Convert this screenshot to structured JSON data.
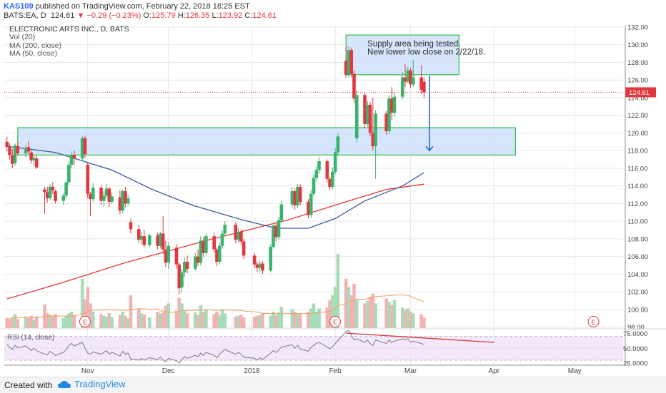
{
  "header": {
    "author": "KAS109",
    "published": "published on TradingView.com, February 22, 2018 18:25 EST",
    "ticker": "BATS:EA, D",
    "last": "124.61",
    "change": "−0.29 (−0.23%)",
    "o_label": "O:",
    "o": "125.79",
    "h_label": "H:",
    "h": "126.35",
    "l_label": "L:",
    "l": "123.92",
    "c_label": "C:",
    "c": "124.61"
  },
  "legend": [
    "ELECTRONIC ARTS INC., D, BATS",
    "Vol (20)",
    "MA (200, close)",
    "MA (50, close)"
  ],
  "footer": {
    "created_with": "Created with",
    "brand": "TradingView"
  },
  "colors": {
    "up": "#3ab36c",
    "down": "#e0383e",
    "ma200": "#e53935",
    "ma50": "#3b5b9e",
    "zone_fill": "#cfe0fa",
    "zone_border": "#2fbf4a",
    "rsi_fill": "#f3e8fa",
    "rsi_line": "#7a7a7a",
    "arrow": "#1f5fc9",
    "grid": "#e4e7ec",
    "last_price_bg": "#e0383e"
  },
  "chart_data": [
    {
      "type": "candlestick",
      "title": "ELECTRONIC ARTS INC., D, BATS",
      "x_labels": [
        "Nov",
        "Dec",
        "2018",
        "Feb",
        "Mar",
        "Apr",
        "May"
      ],
      "x_label_dates": [
        "2017-11-01",
        "2017-12-01",
        "2018-01-01",
        "2018-02-01",
        "2018-03-01",
        "2018-04-01",
        "2018-05-01"
      ],
      "y_ticks": [
        98,
        100,
        102,
        104,
        106,
        108,
        110,
        112,
        114,
        116,
        118,
        120,
        122,
        124,
        126,
        128,
        130,
        132
      ],
      "y_tick_labels": [
        "98.00",
        "100.00",
        "102.00",
        "104.00",
        "106.00",
        "108.00",
        "110.00",
        "112.00",
        "114.00",
        "116.00",
        "118.00",
        "120.00",
        "122.00",
        "124.00",
        "126.00",
        "128.00",
        "130.00",
        "132.00"
      ],
      "ylim": [
        97.5,
        133
      ],
      "last_price": 124.61,
      "last_price_label": "124.61",
      "grid": true,
      "ohlc": [
        [
          "2017-10-02",
          119.0,
          119.6,
          117.9,
          118.4
        ],
        [
          "2017-10-03",
          118.4,
          118.8,
          117.0,
          117.5
        ],
        [
          "2017-10-04",
          117.5,
          118.2,
          116.0,
          116.5
        ],
        [
          "2017-10-05",
          116.6,
          118.8,
          116.3,
          118.6
        ],
        [
          "2017-10-06",
          118.5,
          119.0,
          117.4,
          117.7
        ],
        [
          "2017-10-09",
          117.7,
          118.6,
          117.2,
          118.3
        ],
        [
          "2017-10-10",
          118.4,
          119.1,
          117.6,
          117.9
        ],
        [
          "2017-10-11",
          117.8,
          118.0,
          116.5,
          116.9
        ],
        [
          "2017-10-12",
          116.9,
          117.6,
          116.3,
          117.2
        ],
        [
          "2017-10-13",
          117.1,
          117.5,
          115.9,
          116.1
        ],
        [
          "2017-10-16",
          113.6,
          113.9,
          110.8,
          113.3
        ],
        [
          "2017-10-17",
          113.3,
          113.9,
          112.1,
          112.6
        ],
        [
          "2017-10-18",
          112.6,
          114.2,
          112.4,
          113.9
        ],
        [
          "2017-10-19",
          113.9,
          114.4,
          113.1,
          113.5
        ],
        [
          "2017-10-20",
          113.4,
          113.6,
          112.0,
          112.3
        ],
        [
          "2017-10-23",
          112.3,
          113.2,
          111.8,
          112.9
        ],
        [
          "2017-10-24",
          112.9,
          114.6,
          112.6,
          114.4
        ],
        [
          "2017-10-25",
          114.4,
          116.8,
          114.1,
          116.4
        ],
        [
          "2017-10-26",
          116.4,
          117.9,
          116.0,
          117.5
        ],
        [
          "2017-10-27",
          117.5,
          118.0,
          116.4,
          117.1
        ],
        [
          "2017-10-30",
          117.1,
          119.6,
          116.8,
          119.4
        ],
        [
          "2017-10-31",
          119.4,
          119.7,
          117.2,
          117.6
        ],
        [
          "2017-11-01",
          116.4,
          116.6,
          112.6,
          113.1
        ],
        [
          "2017-11-02",
          113.1,
          113.3,
          110.6,
          112.5
        ],
        [
          "2017-11-03",
          112.5,
          114.3,
          112.2,
          113.8
        ],
        [
          "2017-11-06",
          113.8,
          114.1,
          111.8,
          112.3
        ],
        [
          "2017-11-07",
          112.3,
          113.4,
          111.6,
          112.9
        ],
        [
          "2017-11-08",
          112.9,
          114.2,
          112.6,
          113.7
        ],
        [
          "2017-11-09",
          113.7,
          113.9,
          111.6,
          112.2
        ],
        [
          "2017-11-10",
          112.2,
          113.2,
          111.9,
          112.8
        ],
        [
          "2017-11-13",
          112.7,
          113.5,
          110.8,
          111.2
        ],
        [
          "2017-11-14",
          111.2,
          113.6,
          110.9,
          113.4
        ],
        [
          "2017-11-15",
          113.4,
          113.9,
          111.6,
          112.0
        ],
        [
          "2017-11-16",
          112.0,
          113.0,
          111.7,
          112.6
        ],
        [
          "2017-11-17",
          109.9,
          110.3,
          108.6,
          109.1
        ],
        [
          "2017-11-20",
          109.1,
          109.6,
          107.5,
          107.9
        ],
        [
          "2017-11-21",
          107.9,
          108.8,
          107.4,
          108.3
        ],
        [
          "2017-11-22",
          108.3,
          109.0,
          107.0,
          107.3
        ],
        [
          "2017-11-24",
          107.3,
          108.6,
          107.1,
          108.4
        ],
        [
          "2017-11-27",
          108.4,
          108.7,
          106.8,
          107.2
        ],
        [
          "2017-11-28",
          107.2,
          108.8,
          106.9,
          108.6
        ],
        [
          "2017-11-29",
          108.6,
          110.6,
          106.3,
          106.8
        ],
        [
          "2017-11-30",
          106.8,
          107.8,
          104.8,
          105.3
        ],
        [
          "2017-12-01",
          105.3,
          107.6,
          104.6,
          107.2
        ],
        [
          "2017-12-04",
          107.0,
          107.4,
          104.6,
          105.1
        ],
        [
          "2017-12-05",
          105.1,
          105.3,
          101.7,
          102.4
        ],
        [
          "2017-12-06",
          102.5,
          104.6,
          101.9,
          104.2
        ],
        [
          "2017-12-07",
          104.2,
          105.9,
          103.7,
          105.4
        ],
        [
          "2017-12-08",
          105.4,
          106.1,
          104.1,
          104.6
        ],
        [
          "2017-12-11",
          104.6,
          106.4,
          104.4,
          106.0
        ],
        [
          "2017-12-12",
          106.0,
          106.8,
          104.9,
          105.3
        ],
        [
          "2017-12-13",
          105.3,
          108.3,
          105.0,
          107.8
        ],
        [
          "2017-12-14",
          107.8,
          108.2,
          106.0,
          106.4
        ],
        [
          "2017-12-15",
          106.4,
          108.6,
          106.1,
          108.3
        ],
        [
          "2017-12-18",
          108.3,
          108.7,
          106.4,
          106.8
        ],
        [
          "2017-12-19",
          106.8,
          107.0,
          104.9,
          105.4
        ],
        [
          "2017-12-20",
          105.4,
          107.6,
          105.1,
          107.2
        ],
        [
          "2017-12-21",
          107.2,
          109.0,
          106.9,
          108.6
        ],
        [
          "2017-12-22",
          108.6,
          110.0,
          108.3,
          109.6
        ],
        [
          "2017-12-26",
          109.6,
          109.9,
          107.5,
          107.9
        ],
        [
          "2017-12-27",
          107.9,
          109.2,
          107.6,
          108.8
        ],
        [
          "2017-12-28",
          108.8,
          109.1,
          107.3,
          107.7
        ],
        [
          "2017-12-29",
          107.7,
          108.0,
          105.7,
          106.1
        ],
        [
          "2018-01-02",
          106.1,
          106.4,
          104.7,
          105.1
        ],
        [
          "2018-01-03",
          105.1,
          105.4,
          104.2,
          104.7
        ],
        [
          "2018-01-04",
          104.7,
          105.6,
          104.2,
          105.2
        ],
        [
          "2018-01-05",
          105.2,
          105.5,
          104.0,
          104.4
        ],
        [
          "2018-01-08",
          104.4,
          107.4,
          104.2,
          107.1
        ],
        [
          "2018-01-09",
          107.1,
          109.8,
          106.9,
          109.5
        ],
        [
          "2018-01-10",
          109.5,
          109.8,
          107.7,
          108.2
        ],
        [
          "2018-01-11",
          108.2,
          110.5,
          107.9,
          110.1
        ],
        [
          "2018-01-12",
          110.1,
          112.3,
          109.8,
          111.9
        ],
        [
          "2018-01-16",
          111.9,
          113.9,
          111.5,
          113.4
        ],
        [
          "2018-01-17",
          113.4,
          113.7,
          111.3,
          111.8
        ],
        [
          "2018-01-18",
          111.8,
          114.2,
          111.5,
          113.9
        ],
        [
          "2018-01-19",
          113.9,
          114.2,
          111.8,
          112.2
        ],
        [
          "2018-01-22",
          112.2,
          112.5,
          110.3,
          110.7
        ],
        [
          "2018-01-23",
          110.7,
          113.5,
          110.4,
          113.1
        ],
        [
          "2018-01-24",
          113.1,
          115.3,
          112.8,
          114.9
        ],
        [
          "2018-01-25",
          114.9,
          116.3,
          114.5,
          115.8
        ],
        [
          "2018-01-26",
          115.8,
          117.3,
          115.4,
          116.8
        ],
        [
          "2018-01-29",
          116.8,
          117.0,
          114.4,
          114.8
        ],
        [
          "2018-01-30",
          114.8,
          115.0,
          113.5,
          113.9
        ],
        [
          "2018-01-31",
          113.9,
          116.1,
          113.6,
          115.6
        ],
        [
          "2018-02-01",
          115.6,
          118.3,
          115.3,
          117.8
        ],
        [
          "2018-02-02",
          117.8,
          120.0,
          117.4,
          119.6
        ],
        [
          "2018-02-05",
          128.2,
          129.8,
          126.2,
          126.6
        ],
        [
          "2018-02-06",
          126.6,
          129.8,
          126.3,
          129.4
        ],
        [
          "2018-02-07",
          129.4,
          129.7,
          126.3,
          126.7
        ],
        [
          "2018-02-08",
          126.7,
          127.1,
          123.4,
          123.9
        ],
        [
          "2018-02-09",
          119.4,
          124.8,
          118.9,
          124.3
        ],
        [
          "2018-02-12",
          124.3,
          124.6,
          120.5,
          121.0
        ],
        [
          "2018-02-13",
          121.0,
          123.6,
          120.7,
          123.2
        ],
        [
          "2018-02-14",
          123.2,
          123.5,
          119.6,
          120.0
        ],
        [
          "2018-02-15",
          120.0,
          124.0,
          118.0,
          118.5
        ],
        [
          "2018-02-16",
          118.5,
          122.6,
          114.8,
          122.2
        ],
        [
          "2018-02-20",
          122.2,
          122.5,
          119.8,
          120.2
        ],
        [
          "2018-02-21",
          120.2,
          124.3,
          119.9,
          123.9
        ],
        [
          "2018-02-22",
          123.9,
          125.2,
          121.5,
          122.3
        ],
        [
          "2018-02-23",
          122.3,
          124.6,
          121.8,
          124.1
        ],
        [
          "2018-02-26",
          124.1,
          126.9,
          123.8,
          126.3
        ],
        [
          "2018-02-27",
          126.3,
          127.8,
          125.2,
          125.8
        ],
        [
          "2018-02-28",
          125.8,
          127.5,
          125.6,
          127.1
        ],
        [
          "2018-03-01",
          127.1,
          127.4,
          125.1,
          125.5
        ],
        [
          "2018-03-02",
          125.5,
          128.3,
          125.2,
          126.3
        ],
        [
          "2018-03-05",
          126.3,
          127.7,
          124.4,
          124.9
        ],
        [
          "2018-03-06",
          125.8,
          126.3,
          123.9,
          124.6
        ]
      ],
      "volume_m": [
        0.84,
        0.7,
        0.91,
        1.2,
        0.77,
        0.98,
        0.84,
        1.05,
        0.7,
        0.98,
        2.0,
        1.26,
        1.12,
        0.98,
        1.19,
        0.84,
        1.05,
        1.26,
        1.4,
        1.12,
        4.2,
        2.45,
        3.5,
        2.1,
        1.4,
        1.19,
        1.05,
        0.98,
        1.26,
        0.91,
        1.12,
        1.4,
        1.05,
        0.84,
        2.8,
        1.68,
        1.26,
        1.12,
        0.91,
        1.4,
        1.26,
        1.33,
        1.89,
        2.1,
        1.47,
        2.59,
        2.1,
        1.47,
        1.26,
        1.33,
        1.12,
        1.96,
        1.4,
        1.54,
        1.19,
        1.4,
        1.12,
        1.61,
        1.26,
        0.98,
        1.05,
        1.12,
        0.91,
        0.98,
        1.05,
        1.12,
        1.26,
        1.05,
        1.4,
        1.12,
        1.33,
        1.82,
        1.61,
        1.4,
        1.26,
        1.19,
        1.4,
        1.68,
        2.1,
        1.4,
        1.68,
        1.75,
        2.38,
        2.8,
        3.5,
        6.3,
        4.2,
        3.5,
        2.8,
        3.78,
        2.45,
        2.1,
        2.31,
        2.66,
        2.94,
        2.1,
        2.52,
        2.24,
        1.96,
        2.38,
        1.75,
        1.54,
        1.68,
        1.4,
        1.26,
        1.19,
        0.91
      ],
      "series": [
        {
          "name": "MA (200, close)",
          "points": [
            [
              "2017-10-02",
              101.2
            ],
            [
              "2017-10-20",
              102.8
            ],
            [
              "2017-11-15",
              105.3
            ],
            [
              "2017-12-15",
              107.8
            ],
            [
              "2018-01-15",
              110.2
            ],
            [
              "2018-02-05",
              112.2
            ],
            [
              "2018-02-20",
              113.6
            ],
            [
              "2018-03-06",
              114.2
            ]
          ]
        },
        {
          "name": "MA (50, close)",
          "points": [
            [
              "2017-10-02",
              118.5
            ],
            [
              "2017-10-20",
              117.8
            ],
            [
              "2017-11-10",
              115.8
            ],
            [
              "2017-11-25",
              113.6
            ],
            [
              "2017-12-10",
              111.8
            ],
            [
              "2017-12-28",
              110.2
            ],
            [
              "2018-01-10",
              109.2
            ],
            [
              "2018-01-22",
              109.2
            ],
            [
              "2018-02-01",
              110.3
            ],
            [
              "2018-02-12",
              112.3
            ],
            [
              "2018-02-26",
              114.0
            ],
            [
              "2018-03-06",
              115.5
            ]
          ]
        }
      ],
      "zones": [
        {
          "x_start": "2017-10-06",
          "x_end": "2018-04-09",
          "y_low": 117.5,
          "y_high": 120.6
        },
        {
          "x_start": "2018-02-05",
          "x_end": "2018-03-19",
          "y_low": 126.6,
          "y_high": 131.1
        }
      ],
      "annotation": [
        "Supply area being tested.",
        "New lower low close on 2/22/18."
      ],
      "arrow": {
        "x": "2018-03-08",
        "y_from": 126.5,
        "y_to": 118.0
      },
      "earnings_marker": "E",
      "earnings_dates": [
        "2017-10-31",
        "2018-02-01",
        "2018-05-08"
      ]
    },
    {
      "type": "line",
      "title": "RSI (14, close)",
      "y_ticks": [
        25,
        50,
        75
      ],
      "y_tick_labels": [
        "25.0000",
        "50.0000",
        "75.0000"
      ],
      "ylim": [
        22,
        80
      ],
      "band": [
        30,
        70
      ],
      "values": [
        56,
        52,
        48,
        55,
        51,
        54,
        50,
        46,
        50,
        46,
        40,
        39,
        45,
        42,
        38,
        43,
        48,
        55,
        58,
        54,
        60,
        50,
        42,
        40,
        44,
        40,
        43,
        46,
        40,
        43,
        37,
        45,
        40,
        42,
        32,
        30,
        33,
        30,
        34,
        31,
        35,
        30,
        27,
        33,
        29,
        25,
        31,
        36,
        33,
        38,
        36,
        42,
        38,
        43,
        38,
        34,
        40,
        44,
        48,
        40,
        43,
        40,
        35,
        33,
        30,
        34,
        31,
        42,
        46,
        43,
        47,
        52,
        56,
        50,
        55,
        49,
        45,
        52,
        55,
        58,
        60,
        52,
        49,
        53,
        58,
        63,
        78,
        80,
        72,
        64,
        66,
        60,
        64,
        58,
        55,
        64,
        58,
        64,
        60,
        62,
        66,
        64,
        66,
        60,
        62,
        58,
        56
      ],
      "trendline": {
        "from": [
          "2018-02-05",
          75.5
        ],
        "to": [
          "2018-04-01",
          60
        ]
      }
    }
  ]
}
